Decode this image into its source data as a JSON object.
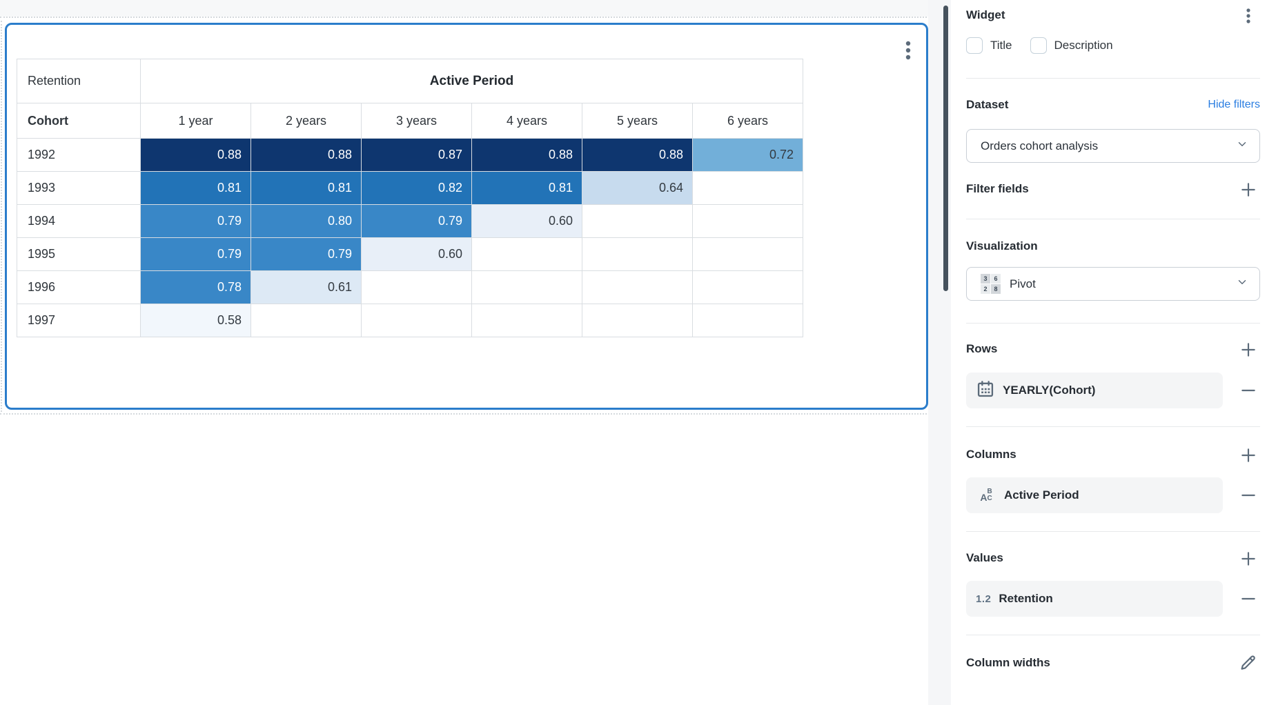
{
  "table": {
    "corner_label": "Retention",
    "column_group_label": "Active Period",
    "row_header_label": "Cohort",
    "column_headers": [
      "1 year",
      "2 years",
      "3 years",
      "4 years",
      "5 years",
      "6 years"
    ],
    "rows": [
      {
        "cohort": "1992",
        "values": [
          "0.88",
          "0.88",
          "0.87",
          "0.88",
          "0.88",
          "0.72"
        ]
      },
      {
        "cohort": "1993",
        "values": [
          "0.81",
          "0.81",
          "0.82",
          "0.81",
          "0.64",
          ""
        ]
      },
      {
        "cohort": "1994",
        "values": [
          "0.79",
          "0.80",
          "0.79",
          "0.60",
          "",
          ""
        ]
      },
      {
        "cohort": "1995",
        "values": [
          "0.79",
          "0.79",
          "0.60",
          "",
          "",
          ""
        ]
      },
      {
        "cohort": "1996",
        "values": [
          "0.78",
          "0.61",
          "",
          "",
          "",
          ""
        ]
      },
      {
        "cohort": "1997",
        "values": [
          "0.58",
          "",
          "",
          "",
          "",
          ""
        ]
      }
    ],
    "cell_colors": {
      "0.88": {
        "bg": "#0e366f",
        "fg": "#ffffff"
      },
      "0.87": {
        "bg": "#0e366f",
        "fg": "#ffffff"
      },
      "0.82": {
        "bg": "#2273b7",
        "fg": "#ffffff"
      },
      "0.81": {
        "bg": "#2273b7",
        "fg": "#ffffff"
      },
      "0.80": {
        "bg": "#3987c7",
        "fg": "#ffffff"
      },
      "0.79": {
        "bg": "#3987c7",
        "fg": "#ffffff"
      },
      "0.78": {
        "bg": "#3987c7",
        "fg": "#ffffff"
      },
      "0.72": {
        "bg": "#72afd9",
        "fg": "#333a41"
      },
      "0.64": {
        "bg": "#c7dbee",
        "fg": "#333a41"
      },
      "0.61": {
        "bg": "#dde9f5",
        "fg": "#333a41"
      },
      "0.60": {
        "bg": "#e8eff8",
        "fg": "#333a41"
      },
      "0.58": {
        "bg": "#f2f7fc",
        "fg": "#333a41"
      },
      "": {
        "bg": "#ffffff",
        "fg": "#333a41"
      }
    }
  },
  "sidebar": {
    "title": "Widget",
    "checkboxes": [
      {
        "label": "Title",
        "checked": false
      },
      {
        "label": "Description",
        "checked": false
      }
    ],
    "dataset": {
      "heading": "Dataset",
      "link": "Hide filters",
      "selected": "Orders cohort analysis"
    },
    "filter_fields": {
      "heading": "Filter fields"
    },
    "visualization": {
      "heading": "Visualization",
      "selected": "Pivot",
      "icon_numbers": [
        "3",
        "6",
        "2",
        "8"
      ]
    },
    "rows_section": {
      "heading": "Rows",
      "field": "YEARLY(Cohort)"
    },
    "columns_section": {
      "heading": "Columns",
      "field": "Active Period",
      "icon_letters": [
        "A",
        "B",
        "C"
      ]
    },
    "values_section": {
      "heading": "Values",
      "prefix": "1.2",
      "field": "Retention"
    },
    "column_widths": {
      "heading": "Column widths"
    }
  },
  "colors": {
    "widget_border": "#2b7dcb",
    "link_blue": "#2a7de1",
    "icon_slate": "#5c6b7a",
    "scrollbar": "#46525d",
    "chip_bg": "#f4f5f6",
    "divider": "#e7e9eb"
  }
}
